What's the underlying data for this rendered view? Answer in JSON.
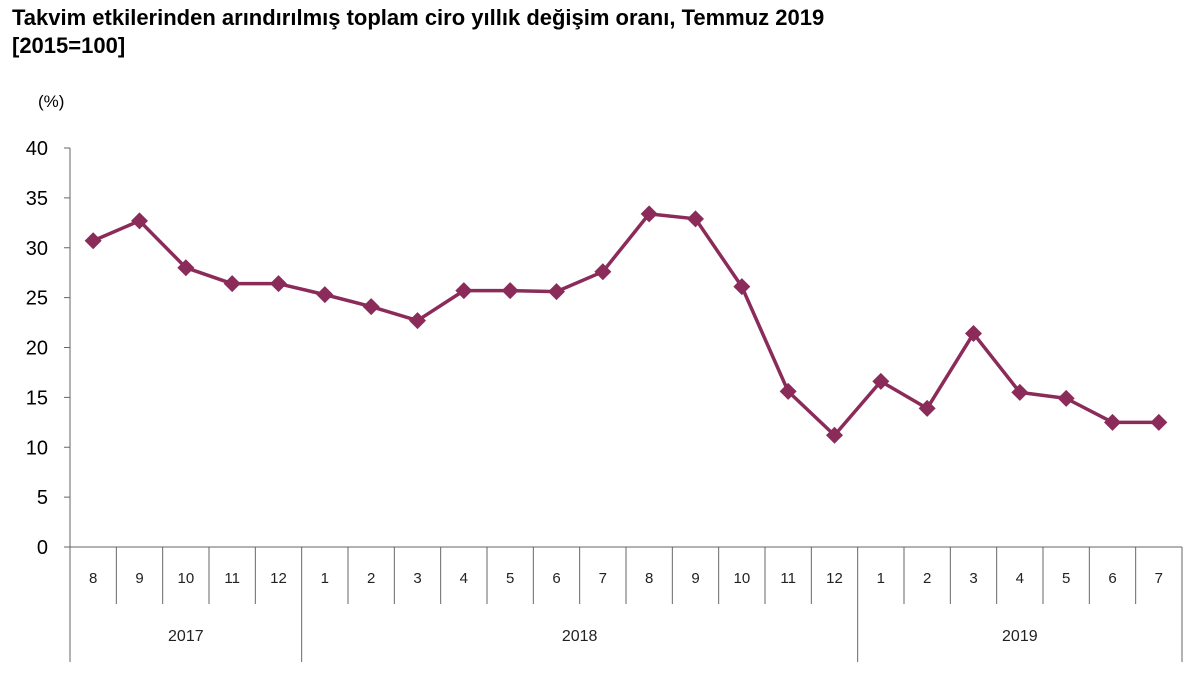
{
  "title": "Takvim etkilerinden arındırılmış toplam ciro yıllık değişim oranı, Temmuz 2019",
  "subtitle": "[2015=100]",
  "chart_data": {
    "type": "line",
    "title": "Takvim etkilerinden arındırılmış toplam ciro yıllık değişim oranı, Temmuz 2019",
    "subtitle": "[2015=100]",
    "ylabel": "(%)",
    "xlabel": "",
    "ylim": [
      0,
      40
    ],
    "yticks": [
      0,
      5,
      10,
      15,
      20,
      25,
      30,
      35,
      40
    ],
    "grid": false,
    "legend": "none",
    "color": "#8B2B5A",
    "categories": [
      "8",
      "9",
      "10",
      "11",
      "12",
      "1",
      "2",
      "3",
      "4",
      "5",
      "6",
      "7",
      "8",
      "9",
      "10",
      "11",
      "12",
      "1",
      "2",
      "3",
      "4",
      "5",
      "6",
      "7"
    ],
    "year_groups": [
      {
        "label": "2017",
        "count": 5
      },
      {
        "label": "2018",
        "count": 12
      },
      {
        "label": "2019",
        "count": 7
      }
    ],
    "series": [
      {
        "values": [
          30.7,
          32.7,
          28.0,
          26.4,
          26.4,
          25.3,
          24.1,
          22.7,
          25.7,
          25.7,
          25.6,
          27.6,
          33.4,
          32.9,
          26.1,
          15.6,
          11.2,
          16.6,
          13.9,
          21.4,
          15.5,
          14.9,
          12.5,
          12.5
        ]
      }
    ]
  }
}
